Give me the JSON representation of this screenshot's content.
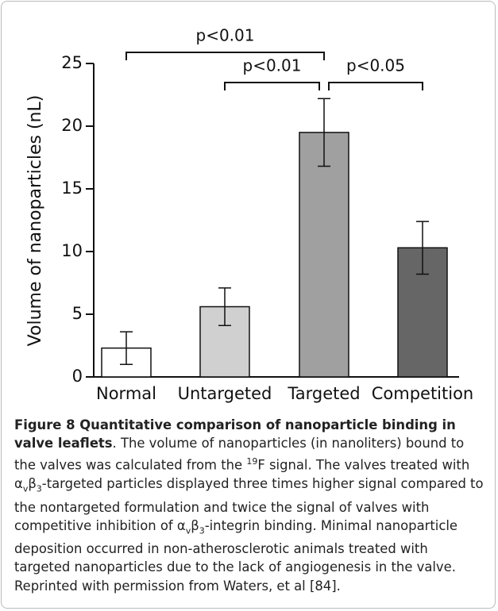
{
  "chart_data": {
    "type": "bar",
    "y_label": "Volume of nanoparticles (nL)",
    "categories": [
      "Normal",
      "Untargeted",
      "Targeted",
      "Competition"
    ],
    "values": [
      2.3,
      5.6,
      19.5,
      10.3
    ],
    "errors": [
      1.3,
      1.5,
      2.7,
      2.1
    ],
    "colors": [
      "#ffffff",
      "#d0d0d0",
      "#a0a0a0",
      "#666666"
    ],
    "ylim": [
      0,
      25
    ],
    "yticks": [
      0,
      5,
      10,
      15,
      20,
      25
    ],
    "annotations": [
      {
        "label": "p<0.01",
        "between": [
          "Normal",
          "Targeted"
        ]
      },
      {
        "label": "p<0.01",
        "between": [
          "Untargeted",
          "Targeted"
        ]
      },
      {
        "label": "p<0.05",
        "between": [
          "Targeted",
          "Competition"
        ]
      }
    ]
  },
  "caption": {
    "title": "Figure 8 Quantitative comparison of nanoparticle binding in valve leaflets",
    "parts": [
      {
        "text": ". The volume of nanoparticles (in nanoliters) bound to the valves was calculated from the "
      },
      {
        "sup": "19"
      },
      {
        "text": "F signal. The valves treated with "
      },
      {
        "text": "α"
      },
      {
        "sub": "v"
      },
      {
        "text": "β"
      },
      {
        "sub": "3"
      },
      {
        "text": "-targeted particles displayed three times higher signal compared to the nontargeted formulation and twice the signal of valves with competitive inhibition of "
      },
      {
        "text": "α"
      },
      {
        "sub": "v"
      },
      {
        "text": "β"
      },
      {
        "sub": "3"
      },
      {
        "text": "-integrin binding. Minimal nanoparticle deposition occurred in non-atherosclerotic animals treated with targeted nanoparticles due to the lack of angiogenesis in the valve. Reprinted with permission from Waters, et al [84]."
      }
    ]
  }
}
